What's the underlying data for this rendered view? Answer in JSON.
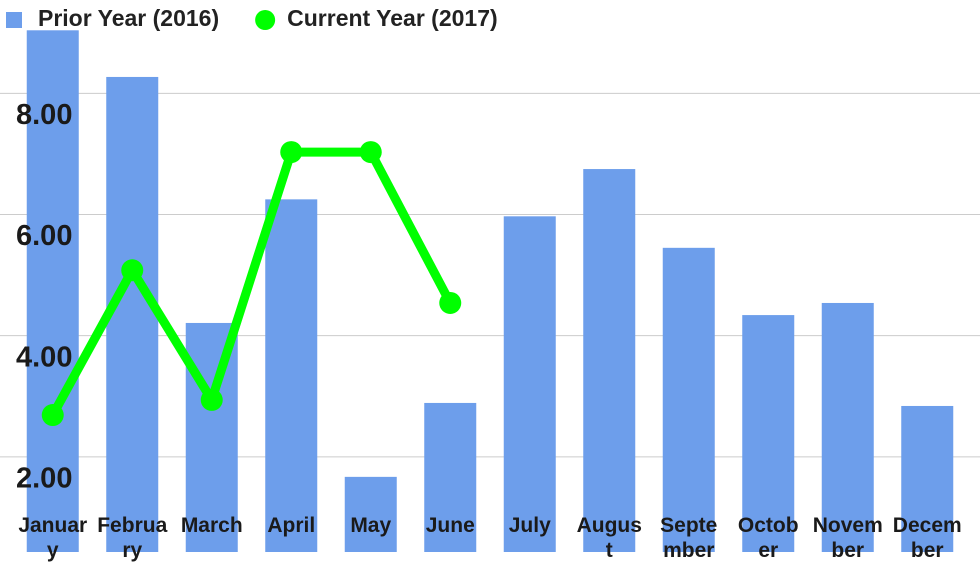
{
  "chart_data": {
    "type": "bar-line",
    "categories": [
      "January",
      "February",
      "March",
      "April",
      "May",
      "June",
      "July",
      "August",
      "September",
      "October",
      "November",
      "December"
    ],
    "series": [
      {
        "name": "Prior Year (2016)",
        "type": "bar",
        "color": "#6d9eeb",
        "values": [
          9.04,
          8.27,
          4.21,
          6.25,
          1.67,
          2.89,
          5.97,
          6.75,
          5.45,
          4.34,
          4.54,
          2.84
        ]
      },
      {
        "name": "Current Year (2017)",
        "type": "line",
        "color": "#00ff00",
        "values": [
          2.69,
          5.08,
          2.94,
          7.03,
          7.03,
          4.54,
          null,
          null,
          null,
          null,
          null,
          null
        ]
      }
    ],
    "ylim": [
      0.43,
      9.54
    ],
    "yticks": [
      {
        "value": 2,
        "label": "2.00"
      },
      {
        "value": 4,
        "label": "4.00"
      },
      {
        "value": 6,
        "label": "6.00"
      },
      {
        "value": 8,
        "label": "8.00"
      }
    ],
    "grid": true
  }
}
